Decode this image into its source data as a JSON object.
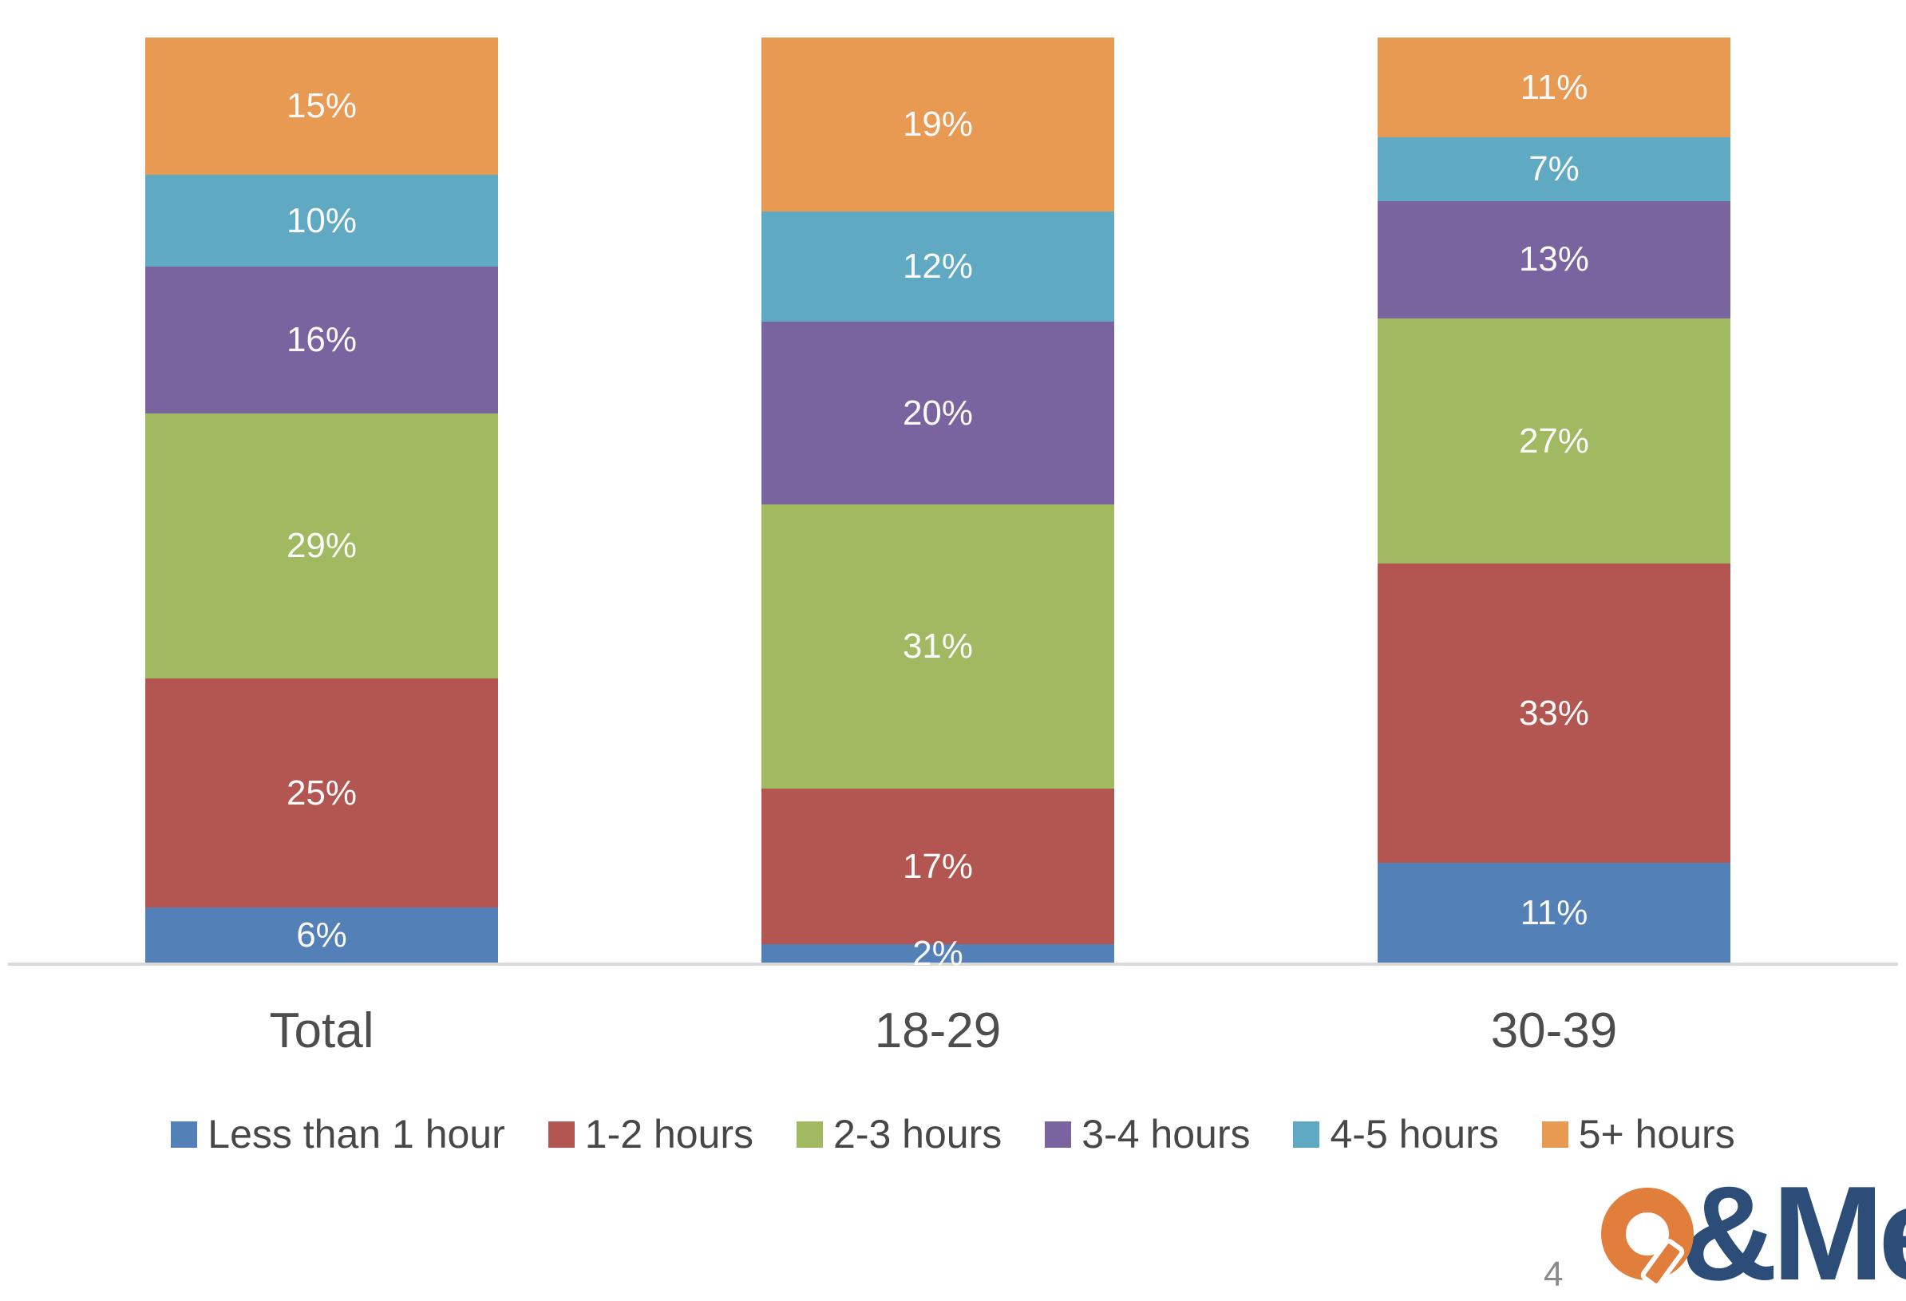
{
  "chart_data": {
    "type": "bar",
    "stacked": true,
    "title": "",
    "xlabel": "",
    "ylabel": "",
    "categories": [
      "Total",
      "18-29",
      "30-39"
    ],
    "series": [
      {
        "name": "Less than 1 hour",
        "color": "#5480b8",
        "values": [
          6,
          2,
          11
        ]
      },
      {
        "name": "1-2 hours",
        "color": "#b35551",
        "values": [
          25,
          17,
          33
        ]
      },
      {
        "name": "2-3 hours",
        "color": "#a1ba62",
        "values": [
          29,
          31,
          27
        ]
      },
      {
        "name": "3-4 hours",
        "color": "#7a64a0",
        "values": [
          16,
          20,
          13
        ]
      },
      {
        "name": "4-5 hours",
        "color": "#60a9c2",
        "values": [
          10,
          12,
          7
        ]
      },
      {
        "name": "5+ hours",
        "color": "#e89a52",
        "values": [
          15,
          19,
          11
        ]
      }
    ],
    "value_suffix": "%",
    "bar_label_color": "#fafafa",
    "ylim": [
      0,
      100
    ],
    "grid": false,
    "axis_color": "#d9d9d9",
    "legend_position": "bottom"
  },
  "footer": {
    "page_number": "4",
    "logo": {
      "name": "Q&Me",
      "rest": "&Me",
      "orange": "#e27e3c",
      "navy": "#2c4d77"
    }
  }
}
